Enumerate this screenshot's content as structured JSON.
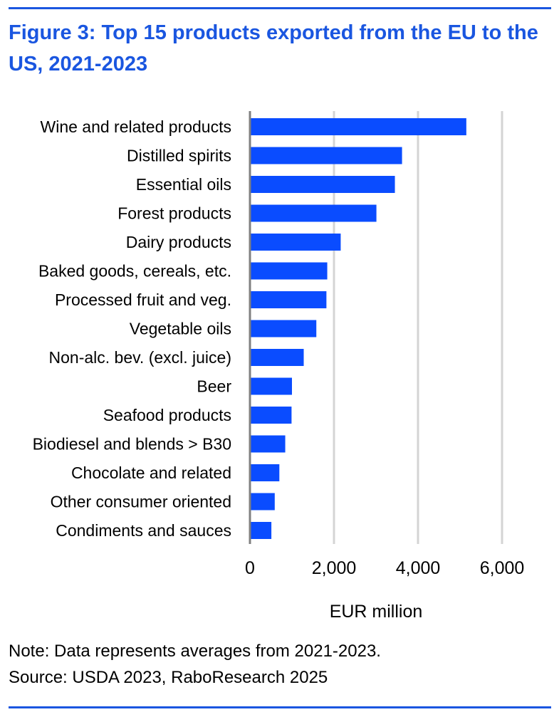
{
  "figure": {
    "title": "Figure 3: Top 15 products exported from the EU to the US, 2021-2023",
    "note": "Note: Data represents averages from 2021-2023.",
    "source": "Source: USDA 2023, RaboResearch 2025"
  },
  "colors": {
    "accent": "#1a56e0",
    "bar": "#0a4cff",
    "grid": "#d4d4d4",
    "axis": "#808080",
    "text": "#000000"
  },
  "chart_data": {
    "type": "bar",
    "orientation": "horizontal",
    "title": "Figure 3: Top 15 products exported from the EU to the US, 2021-2023",
    "xlabel": "EUR million",
    "ylabel": "",
    "xlim": [
      0,
      6600
    ],
    "xticks": [
      0,
      2000,
      4000,
      6000
    ],
    "xtick_labels": [
      "0",
      "2,000",
      "4,000",
      "6,000"
    ],
    "grid": "vertical",
    "legend": "none",
    "categories": [
      "Wine and related products",
      "Distilled spirits",
      "Essential oils",
      "Forest products",
      "Dairy products",
      "Baked goods, cereals, etc.",
      "Processed fruit and veg.",
      "Vegetable oils",
      "Non-alc. bev. (excl. juice)",
      "Beer",
      "Seafood products",
      "Biodiesel and blends > B30",
      "Chocolate and related",
      "Other consumer oriented",
      "Condiments and sauces"
    ],
    "values": [
      5150,
      3620,
      3450,
      3010,
      2160,
      1840,
      1820,
      1580,
      1280,
      1000,
      990,
      840,
      700,
      590,
      510
    ]
  }
}
